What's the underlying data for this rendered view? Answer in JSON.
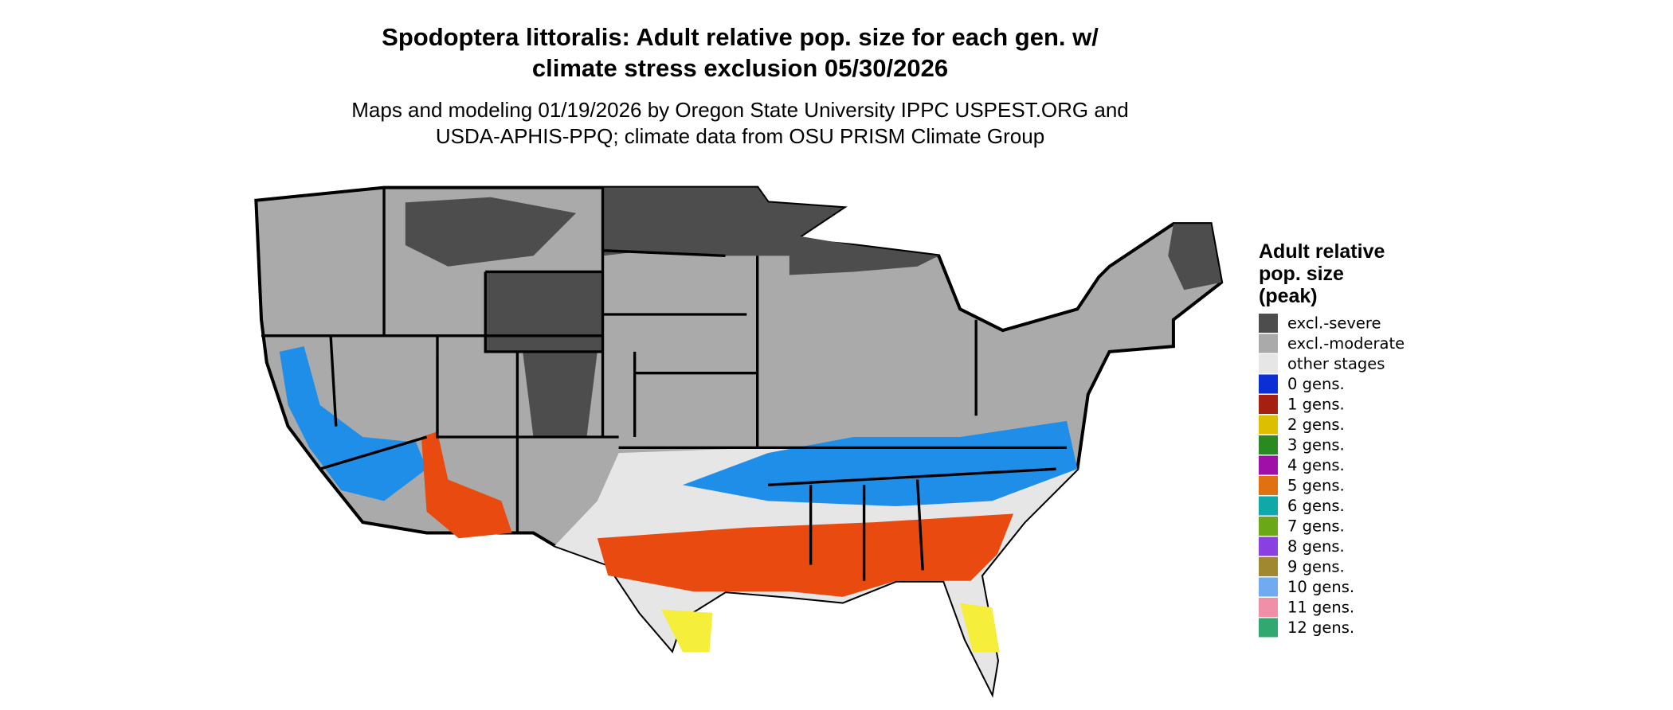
{
  "title_lines": [
    "Spodoptera littoralis: Adult relative pop. size for each gen. w/",
    "climate stress exclusion 05/30/2026"
  ],
  "subtitle_lines": [
    "Maps and modeling 01/19/2026 by Oregon State University IPPC USPEST.ORG and",
    "USDA-APHIS-PPQ; climate data from OSU PRISM Climate Group"
  ],
  "legend": {
    "title_lines": [
      "Adult relative",
      "pop. size",
      "(peak)"
    ],
    "items": [
      {
        "label": "excl.-severe",
        "color": "#4d4d4d"
      },
      {
        "label": "excl.-moderate",
        "color": "#aaaaaa"
      },
      {
        "label": "other stages",
        "color": "#e6e6e6"
      },
      {
        "label": "0 gens.",
        "color": "#0a2fd6"
      },
      {
        "label": "1 gens.",
        "color": "#a52010"
      },
      {
        "label": "2 gens.",
        "color": "#dcc000"
      },
      {
        "label": "3 gens.",
        "color": "#2a8a22"
      },
      {
        "label": "4 gens.",
        "color": "#a010a8"
      },
      {
        "label": "5 gens.",
        "color": "#e07010"
      },
      {
        "label": "6 gens.",
        "color": "#10a8a8"
      },
      {
        "label": "7 gens.",
        "color": "#6aa818"
      },
      {
        "label": "8 gens.",
        "color": "#8a40e0"
      },
      {
        "label": "9 gens.",
        "color": "#a08830"
      },
      {
        "label": "10 gens.",
        "color": "#70aaf0"
      },
      {
        "label": "11 gens.",
        "color": "#f090a8"
      },
      {
        "label": "12 gens.",
        "color": "#30a870"
      }
    ]
  }
}
